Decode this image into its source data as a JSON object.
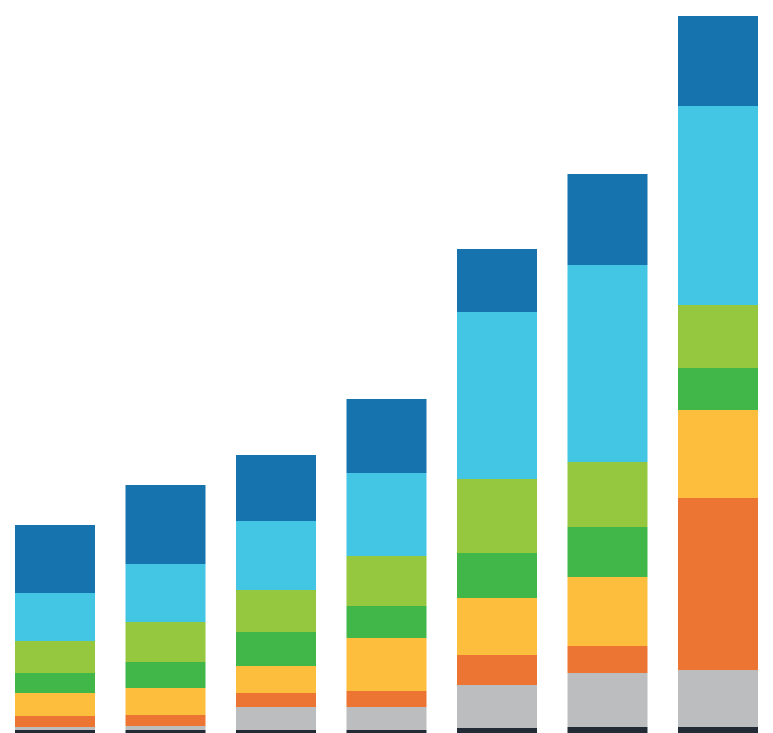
{
  "chart_data": {
    "type": "stacked-bar",
    "ylim": [
      0,
      720
    ],
    "series": [
      {
        "color": "#222b36",
        "values": [
          3,
          3,
          3,
          3,
          5,
          6,
          6
        ]
      },
      {
        "color": "#bcbdbf",
        "values": [
          3,
          4,
          23,
          23,
          43,
          54,
          57
        ]
      },
      {
        "color": "#ec7533",
        "values": [
          11,
          11,
          14,
          16,
          30,
          27,
          172
        ]
      },
      {
        "color": "#fdbe3e",
        "values": [
          23,
          27,
          27,
          53,
          57,
          69,
          88
        ]
      },
      {
        "color": "#41b649",
        "values": [
          20,
          26,
          34,
          32,
          45,
          50,
          42
        ]
      },
      {
        "color": "#96c83f",
        "values": [
          32,
          40,
          42,
          50,
          74,
          65,
          63
        ]
      },
      {
        "color": "#43c5e4",
        "values": [
          48,
          58,
          69,
          83,
          167,
          197,
          199
        ]
      },
      {
        "color": "#1673ae",
        "values": [
          68,
          79,
          66,
          74,
          63,
          91,
          90
        ]
      }
    ]
  }
}
